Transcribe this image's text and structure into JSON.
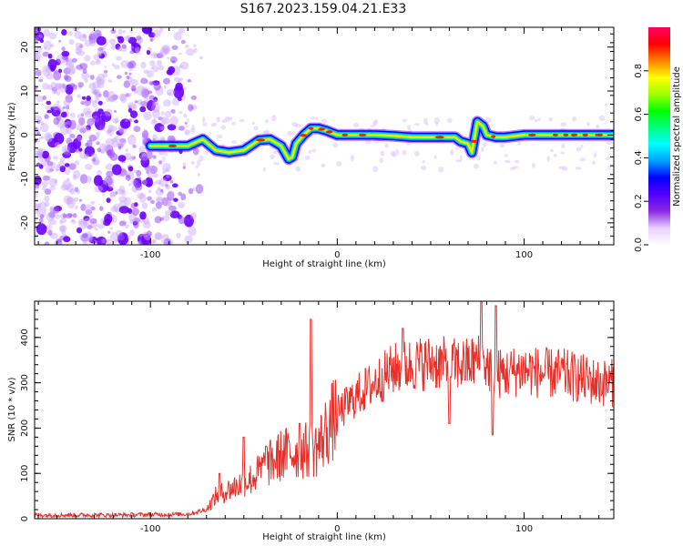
{
  "title": "S167.2023.159.04.21.E33",
  "chart_data": [
    {
      "type": "heatmap",
      "xlabel": "Height of straight line (km)",
      "ylabel": "Frequency (Hz)",
      "xlim": [
        -162,
        148
      ],
      "ylim": [
        -25,
        24.5
      ],
      "x_ticks": [
        -100,
        0,
        100
      ],
      "y_ticks": [
        -20,
        -10,
        0,
        10,
        20
      ],
      "colorbar": {
        "label": "Normalized spectral amplitude",
        "range": [
          0,
          1
        ],
        "ticks": [
          "0.0",
          "0.2",
          "0.4",
          "0.6",
          "0.8"
        ],
        "colors": [
          "#ffffff",
          "#e8d0ff",
          "#8a2be2",
          "#5500ff",
          "#0000ff",
          "#00a0ff",
          "#00ffff",
          "#00ff80",
          "#00ff00",
          "#a0ff00",
          "#ffff00",
          "#ff8000",
          "#ff0000",
          "#ff0066"
        ]
      },
      "ridge": {
        "x": [
          -100,
          -90,
          -80,
          -72,
          -65,
          -58,
          -50,
          -42,
          -36,
          -30,
          -26,
          -24,
          -22,
          -18,
          -14,
          -10,
          -6,
          0,
          5,
          10,
          20,
          30,
          40,
          50,
          60,
          63,
          66,
          70,
          72,
          75,
          78,
          80,
          85,
          90,
          100,
          110,
          120,
          130,
          140,
          148
        ],
        "y": [
          -2.5,
          -2.5,
          -2.5,
          -1,
          -3.5,
          -4,
          -3.5,
          -1.2,
          -1,
          -2.5,
          -5.5,
          -5,
          -2,
          0,
          1.5,
          1.5,
          1,
          0,
          0,
          0,
          0,
          -0.2,
          -0.5,
          -0.5,
          -0.5,
          -0.5,
          -1.5,
          -2,
          -4,
          3,
          2,
          0,
          -0.5,
          -0.5,
          0,
          0,
          0,
          0,
          0,
          0
        ]
      }
    },
    {
      "type": "line",
      "xlabel": "Height of straight line (km)",
      "ylabel": "SNR (10 * v/v)",
      "xlim": [
        -162,
        148
      ],
      "ylim": [
        0,
        480
      ],
      "x_ticks": [
        -100,
        0,
        100
      ],
      "y_ticks": [
        0,
        100,
        200,
        300,
        400
      ],
      "color": "#e8302a",
      "envelope": {
        "x": [
          -162,
          -120,
          -80,
          -70,
          -65,
          -60,
          -55,
          -50,
          -45,
          -40,
          -30,
          -20,
          -15,
          -10,
          -5,
          0,
          10,
          20,
          30,
          40,
          50,
          60,
          70,
          75,
          80,
          85,
          90,
          100,
          110,
          120,
          130,
          140,
          148
        ],
        "y": [
          8,
          8,
          10,
          20,
          50,
          60,
          70,
          80,
          90,
          110,
          140,
          150,
          150,
          160,
          200,
          230,
          270,
          300,
          330,
          340,
          345,
          340,
          340,
          350,
          340,
          320,
          320,
          330,
          320,
          320,
          310,
          300,
          300
        ]
      },
      "spikes": [
        {
          "x": -63,
          "y": 100
        },
        {
          "x": -50,
          "y": 180
        },
        {
          "x": -38,
          "y": 160
        },
        {
          "x": -20,
          "y": 210
        },
        {
          "x": -14,
          "y": 440
        },
        {
          "x": 35,
          "y": 420
        },
        {
          "x": 77,
          "y": 480
        },
        {
          "x": 85,
          "y": 470
        },
        {
          "x": 83,
          "y": 185
        },
        {
          "x": 60,
          "y": 210
        }
      ]
    }
  ]
}
